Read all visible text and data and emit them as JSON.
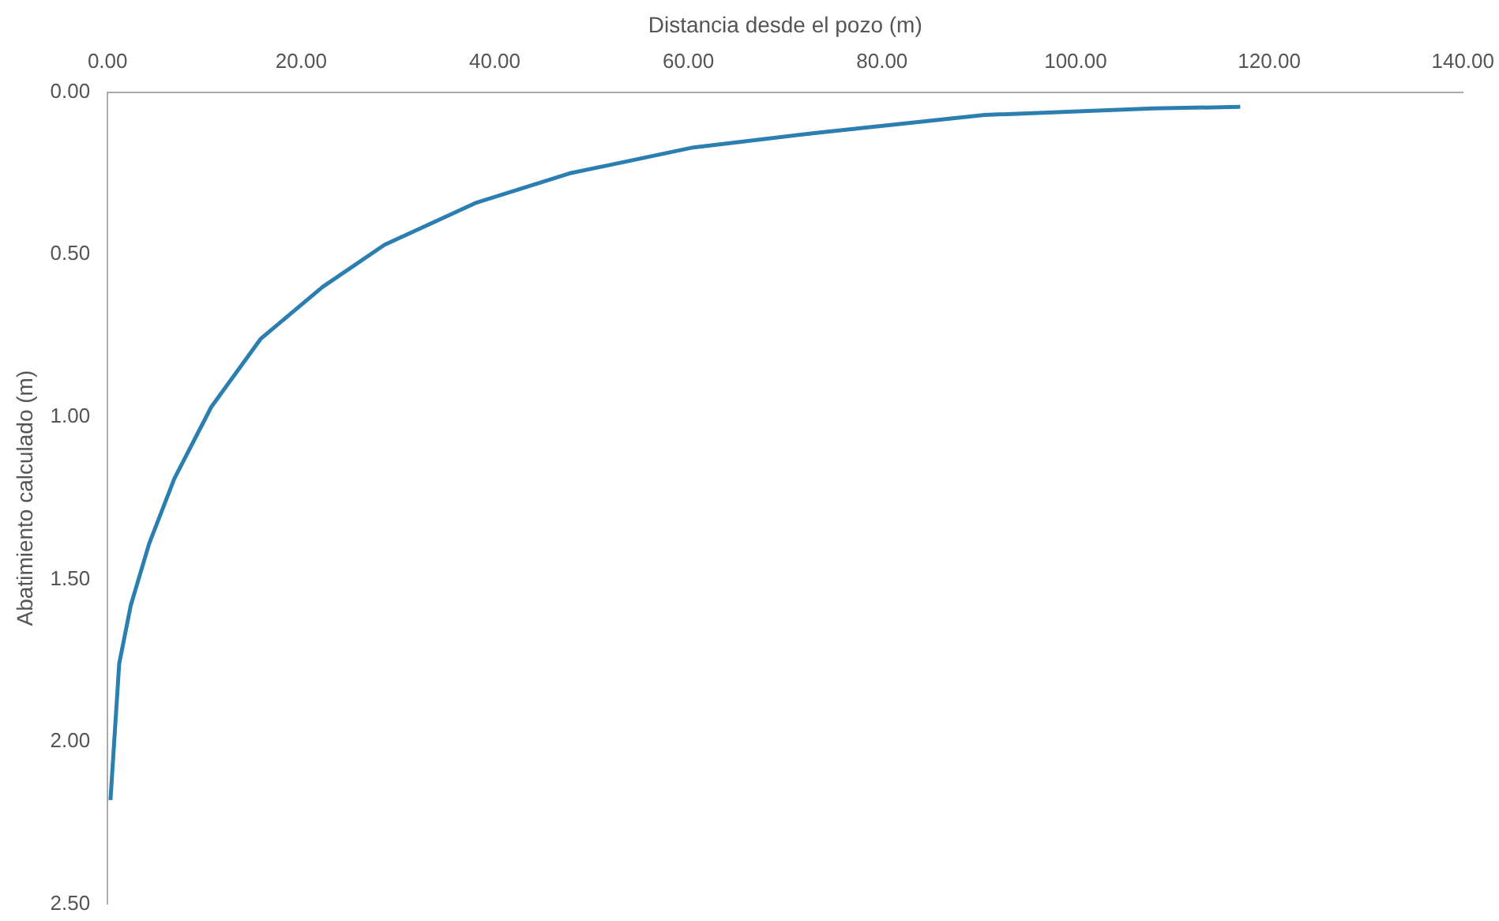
{
  "chart_data": {
    "type": "line",
    "xlabel": "Distancia desde el pozo (m)",
    "ylabel": "Abatimiento calculado (m)",
    "xlim": [
      0,
      140
    ],
    "xticks": [
      {
        "value": 0,
        "label": "0.00"
      },
      {
        "value": 20,
        "label": "20.00"
      },
      {
        "value": 40,
        "label": "40.00"
      },
      {
        "value": 60,
        "label": "60.00"
      },
      {
        "value": 80,
        "label": "80.00"
      },
      {
        "value": 100,
        "label": "100.00"
      },
      {
        "value": 120,
        "label": "120.00"
      },
      {
        "value": 140,
        "label": "140.00"
      }
    ],
    "ylim": [
      2.5,
      0
    ],
    "yticks": [
      {
        "value": 0,
        "label": "0.00"
      },
      {
        "value": 0.5,
        "label": "0.50"
      },
      {
        "value": 1,
        "label": "1.00"
      },
      {
        "value": 1.5,
        "label": "1.50"
      },
      {
        "value": 2,
        "label": "2.00"
      },
      {
        "value": 2.5,
        "label": "2.50"
      }
    ],
    "grid": false,
    "legend": false,
    "marker": "none",
    "line_style": "solid",
    "series": [
      {
        "color": "#2a7fb0",
        "x": [
          0.3,
          1.2,
          2.4,
          4.3,
          6.9,
          10.7,
          15.8,
          22.2,
          28.6,
          38.1,
          47.7,
          60.5,
          73.2,
          90.6,
          108,
          117
        ],
        "values": [
          2.18,
          1.76,
          1.58,
          1.39,
          1.19,
          0.97,
          0.76,
          0.6,
          0.47,
          0.34,
          0.25,
          0.17,
          0.125,
          0.07,
          0.05,
          0.045
        ]
      }
    ]
  }
}
